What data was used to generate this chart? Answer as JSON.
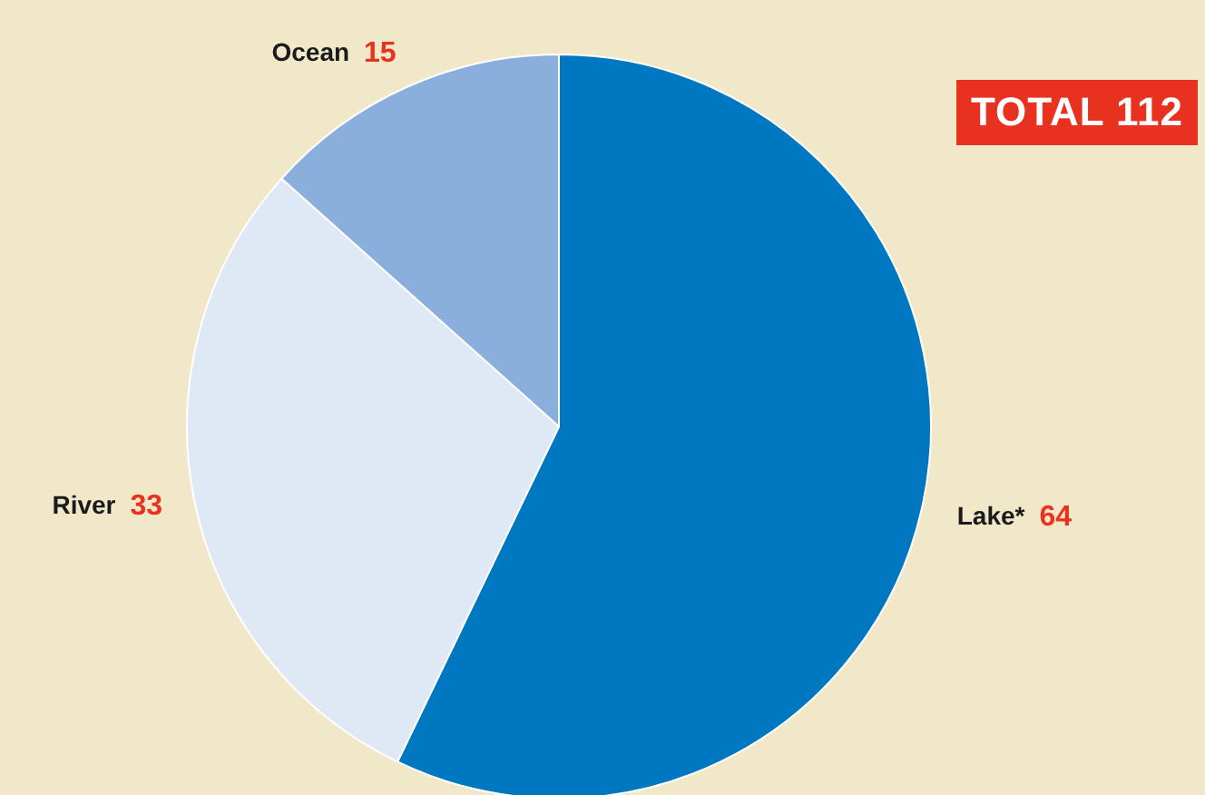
{
  "chart_data": {
    "type": "pie",
    "categories": [
      "Lake*",
      "River",
      "Ocean"
    ],
    "values": [
      64,
      33,
      15
    ],
    "colors": [
      "#0078c1",
      "#dfe8f5",
      "#8aafdc"
    ],
    "data_labels": true,
    "legend": false,
    "annotations": [
      "TOTAL 112"
    ]
  }
}
